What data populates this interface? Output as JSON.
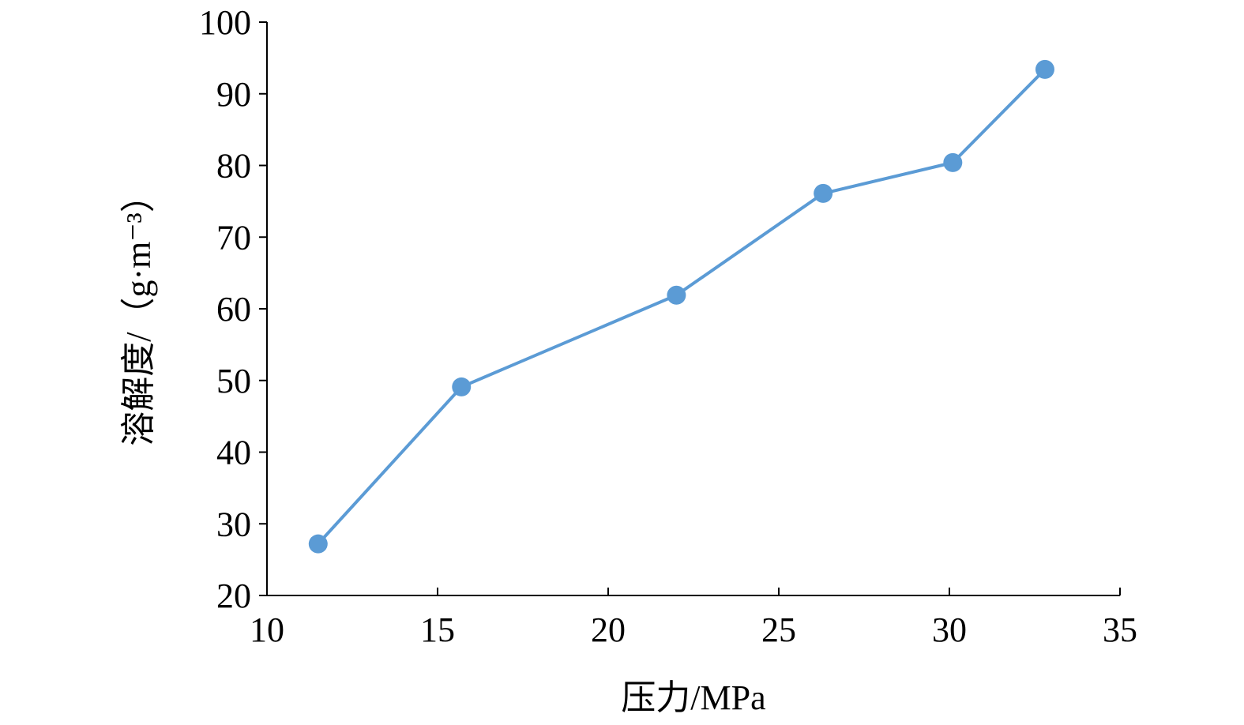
{
  "chart_data": {
    "type": "line",
    "title": "",
    "xlabel": "压力/MPa",
    "ylabel": "溶解度/（g·m⁻³）",
    "xlim": [
      10,
      35
    ],
    "ylim": [
      20,
      100
    ],
    "x_ticks": [
      10,
      15,
      20,
      25,
      30,
      35
    ],
    "y_ticks": [
      20,
      30,
      40,
      50,
      60,
      70,
      80,
      90,
      100
    ],
    "grid": false,
    "legend": "none",
    "series": [
      {
        "color": "#5B9BD5",
        "marker": "circle",
        "points": [
          {
            "x": 11.5,
            "y": 27.2
          },
          {
            "x": 15.7,
            "y": 49.1
          },
          {
            "x": 22.0,
            "y": 61.9
          },
          {
            "x": 26.3,
            "y": 76.1
          },
          {
            "x": 30.1,
            "y": 80.4
          },
          {
            "x": 32.8,
            "y": 93.4
          }
        ]
      }
    ]
  }
}
